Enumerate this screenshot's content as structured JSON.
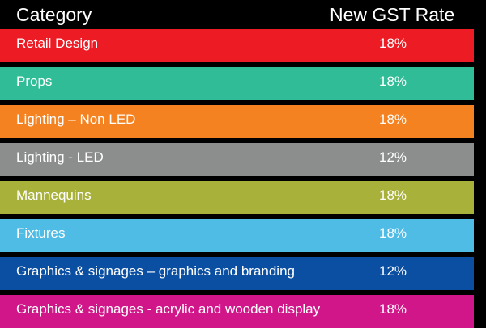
{
  "header": {
    "category_label": "Category",
    "rate_label": "New GST Rate"
  },
  "chart_data": {
    "type": "table",
    "columns": [
      "Category",
      "New GST Rate"
    ],
    "rows": [
      {
        "category": "Retail Design",
        "rate": "18%",
        "color": "#ed1c24"
      },
      {
        "category": "Props",
        "rate": "18%",
        "color": "#2fbc96"
      },
      {
        "category": "Lighting – Non LED",
        "rate": "18%",
        "color": "#f58220"
      },
      {
        "category": "Lighting - LED",
        "rate": "12%",
        "color": "#8c8e8e"
      },
      {
        "category": "Mannequins",
        "rate": "18%",
        "color": "#a8b23a"
      },
      {
        "category": "Fixtures",
        "rate": "18%",
        "color": "#4fbce6"
      },
      {
        "category": "Graphics & signages – graphics and branding",
        "rate": "12%",
        "color": "#0b4fa3"
      },
      {
        "category": "Graphics & signages - acrylic and wooden display",
        "rate": "18%",
        "color": "#d1168a"
      }
    ]
  }
}
